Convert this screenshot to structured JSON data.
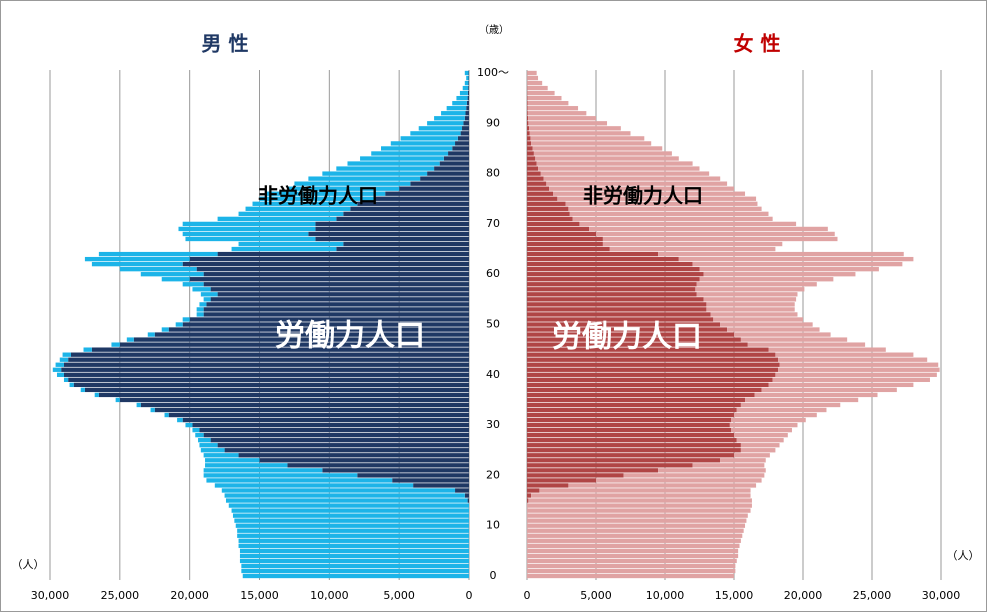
{
  "chart_data": {
    "type": "bar",
    "orientation": "horizontal",
    "stacked": true,
    "grid": true,
    "ylabel": "（歳）",
    "xlabel": "（人）",
    "categories": [
      0,
      null,
      null,
      null,
      null,
      null,
      null,
      null,
      null,
      null,
      10,
      null,
      null,
      null,
      null,
      null,
      null,
      null,
      null,
      null,
      20,
      null,
      null,
      null,
      null,
      null,
      null,
      null,
      null,
      null,
      30,
      null,
      null,
      null,
      null,
      null,
      null,
      null,
      null,
      null,
      40,
      null,
      null,
      null,
      null,
      null,
      null,
      null,
      null,
      null,
      50,
      null,
      null,
      null,
      null,
      null,
      null,
      null,
      null,
      null,
      60,
      null,
      null,
      null,
      null,
      null,
      null,
      null,
      null,
      null,
      70,
      null,
      null,
      null,
      null,
      null,
      null,
      null,
      null,
      null,
      80,
      null,
      null,
      null,
      null,
      null,
      null,
      null,
      null,
      null,
      90,
      null,
      null,
      null,
      null,
      null,
      null,
      null,
      null,
      null,
      "100～"
    ],
    "xticks": [
      0,
      {
        "value": 5000,
        "label": "5,000"
      },
      {
        "value": 10000,
        "label": "10,000"
      },
      {
        "value": 15000,
        "label": "15,000"
      },
      {
        "value": 20000,
        "label": "20,000"
      },
      {
        "value": 25000,
        "label": "25,000"
      },
      {
        "value": 30000,
        "label": "30,000"
      }
    ],
    "panels": [
      {
        "title": "男 性",
        "title_color": "#1f3864",
        "xlim": [
          30000,
          0
        ],
        "series": [
          {
            "name": "労働力人口",
            "color": "#1f3864",
            "values": [
              0,
              0,
              0,
              0,
              0,
              0,
              0,
              0,
              0,
              0,
              0,
              0,
              0,
              0,
              0,
              100,
              300,
              1000,
              4000,
              5500,
              8000,
              10500,
              13000,
              15000,
              16500,
              17500,
              18000,
              18500,
              19000,
              19300,
              19800,
              20500,
              21500,
              22500,
              23500,
              25000,
              26500,
              27500,
              28300,
              28700,
              29000,
              29200,
              29000,
              28700,
              28500,
              27000,
              25000,
              24000,
              22500,
              21500,
              20500,
              20000,
              19000,
              19000,
              18800,
              18500,
              18000,
              18500,
              19000,
              20000,
              19000,
              19500,
              20500,
              20000,
              18000,
              9500,
              9000,
              11000,
              11500,
              11000,
              11000,
              9500,
              9000,
              8500,
              8000,
              6800,
              6000,
              5000,
              4200,
              3500,
              3000,
              2500,
              2100,
              1800,
              1500,
              1200,
              1000,
              800,
              600,
              500,
              400,
              300,
              250,
              200,
              150,
              100,
              80,
              60,
              40,
              30,
              30
            ]
          },
          {
            "name": "非労働力人口",
            "color": "#1cb4e8",
            "values": [
              16200,
              16300,
              16300,
              16400,
              16400,
              16400,
              16500,
              16500,
              16600,
              16600,
              16700,
              16800,
              16900,
              17000,
              17200,
              17300,
              17200,
              16700,
              14200,
              13300,
              11000,
              8500,
              5900,
              3900,
              2500,
              1700,
              1300,
              900,
              600,
              500,
              500,
              400,
              300,
              300,
              300,
              300,
              300,
              300,
              300,
              300,
              500,
              600,
              600,
              600,
              600,
              600,
              600,
              500,
              500,
              500,
              500,
              500,
              500,
              500,
              500,
              500,
              1200,
              1300,
              1500,
              2000,
              4500,
              5500,
              6500,
              7500,
              8500,
              7500,
              7500,
              9300,
              9000,
              9800,
              9500,
              8500,
              7500,
              7500,
              7500,
              8200,
              8500,
              8000,
              8300,
              8000,
              7500,
              7000,
              6600,
              6000,
              5500,
              5100,
              4600,
              4100,
              3600,
              3100,
              2600,
              2200,
              1750,
              1400,
              1050,
              800,
              570,
              390,
              260,
              170,
              270
            ]
          }
        ]
      },
      {
        "title": "女 性",
        "title_color": "#c00000",
        "xlim": [
          0,
          30000
        ],
        "series": [
          {
            "name": "労働力人口",
            "color": "#b04545",
            "values": [
              0,
              0,
              0,
              0,
              0,
              0,
              0,
              0,
              0,
              0,
              0,
              0,
              0,
              0,
              0,
              100,
              300,
              900,
              3000,
              5000,
              7000,
              9500,
              12000,
              14000,
              15000,
              15500,
              15500,
              15200,
              15000,
              14800,
              14700,
              14800,
              15000,
              15200,
              15500,
              15800,
              16500,
              17000,
              17500,
              17800,
              18000,
              18200,
              18300,
              18200,
              18000,
              17500,
              16000,
              15500,
              15000,
              14500,
              14000,
              13500,
              13300,
              13000,
              13000,
              12800,
              12300,
              12200,
              12300,
              12500,
              12800,
              12500,
              12000,
              11000,
              9500,
              6000,
              5500,
              5500,
              5000,
              4500,
              3800,
              3300,
              3100,
              3000,
              2800,
              2200,
              1900,
              1600,
              1400,
              1200,
              1000,
              800,
              700,
              600,
              500,
              400,
              300,
              250,
              200,
              150,
              100,
              80,
              60,
              50,
              40,
              30,
              20,
              20,
              10,
              10,
              10
            ]
          },
          {
            "name": "非労働力人口",
            "color": "#e0a3a3",
            "values": [
              15000,
              15100,
              15100,
              15200,
              15300,
              15300,
              15400,
              15500,
              15600,
              15700,
              15800,
              15900,
              16000,
              16200,
              16300,
              16200,
              15900,
              15300,
              13600,
              12000,
              10200,
              7800,
              5200,
              3300,
              2600,
              2500,
              2800,
              3400,
              3900,
              4400,
              4900,
              5400,
              6000,
              6500,
              7200,
              8200,
              8900,
              9800,
              10500,
              11400,
              11700,
              11700,
              11500,
              10800,
              10000,
              8500,
              8500,
              7700,
              7000,
              6700,
              6700,
              6500,
              6300,
              6400,
              6400,
              6700,
              7300,
              7900,
              8700,
              9700,
              11000,
              13000,
              15200,
              17000,
              17800,
              12000,
              13000,
              17000,
              17300,
              17300,
              15700,
              14500,
              14400,
              14000,
              13900,
              14400,
              13900,
              13400,
              13100,
              12800,
              12200,
              11700,
              11300,
              10400,
              10000,
              9400,
              8700,
              8250,
              7300,
              6650,
              5700,
              4920,
              4240,
              3650,
              2960,
              2470,
              1980,
              1480,
              1090,
              790,
              690
            ]
          }
        ]
      }
    ]
  }
}
